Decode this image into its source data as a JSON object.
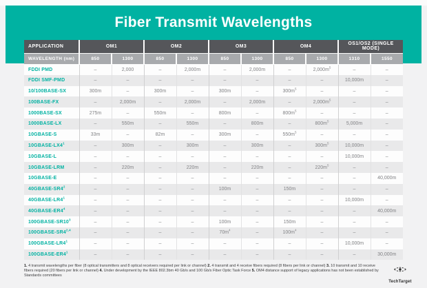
{
  "title": "Fiber Transmit Wavelengths",
  "colors": {
    "teal": "#00b2a2",
    "header_dark": "#55565a",
    "header_mid": "#a8aaad",
    "row_alt": "#e9e9ea",
    "value_text": "#808184"
  },
  "chart_data": {
    "type": "table",
    "title": "Fiber Transmit Wavelengths",
    "app_header": "APPLICATION",
    "wavelength_header": "WAVELENGTH (nm)",
    "groups": [
      {
        "label": "OM1",
        "wavelengths": [
          "850",
          "1300"
        ]
      },
      {
        "label": "OM2",
        "wavelengths": [
          "850",
          "1300"
        ]
      },
      {
        "label": "OM3",
        "wavelengths": [
          "850",
          "1300"
        ]
      },
      {
        "label": "OM4",
        "wavelengths": [
          "850",
          "1300"
        ]
      },
      {
        "label": "OS1/OS2 (SINGLE MODE)",
        "wavelengths": [
          "1310",
          "1550"
        ]
      }
    ],
    "rows": [
      {
        "app": "FDDI PMD",
        "values": [
          "–",
          "2,000",
          "–",
          "2,000m",
          "–",
          "2,000m",
          "–",
          "2,000m^5",
          "–",
          "–"
        ]
      },
      {
        "app": "FDDI SMF-PMD",
        "values": [
          "–",
          "–",
          "–",
          "–",
          "–",
          "–",
          "–",
          "–",
          "10,000m",
          "–"
        ]
      },
      {
        "app": "10/100BASE-SX",
        "values": [
          "300m",
          "–",
          "300m",
          "–",
          "300m",
          "–",
          "300m^5",
          "–",
          "–",
          "–"
        ]
      },
      {
        "app": "100BASE-FX",
        "values": [
          "–",
          "2,000m",
          "–",
          "2,000m",
          "–",
          "2,000m",
          "–",
          "2,000m^5",
          "–",
          "–"
        ]
      },
      {
        "app": "1000BASE-SX",
        "values": [
          "275m",
          "–",
          "550m",
          "–",
          "800m",
          "–",
          "800m^5",
          "–",
          "–",
          "–"
        ]
      },
      {
        "app": "1000BASE-LX",
        "values": [
          "–",
          "550m",
          "–",
          "550m",
          "–",
          "800m",
          "–",
          "800m^5",
          "5,000m",
          "–"
        ]
      },
      {
        "app": "10GBASE-S",
        "values": [
          "33m",
          "–",
          "82m",
          "–",
          "300m",
          "–",
          "550m^5",
          "–",
          "–",
          "–"
        ]
      },
      {
        "app": "10GBASE-LX4^1",
        "values": [
          "–",
          "300m",
          "–",
          "300m",
          "–",
          "300m",
          "–",
          "300m^5",
          "10,000m",
          "–"
        ]
      },
      {
        "app": "10GBASE-L",
        "values": [
          "–",
          "–",
          "–",
          "–",
          "–",
          "–",
          "–",
          "–",
          "10,000m",
          "–"
        ]
      },
      {
        "app": "10GBASE-LRM",
        "values": [
          "–",
          "220m",
          "–",
          "220m",
          "–",
          "220m",
          "–",
          "220m^5",
          "–",
          "–"
        ]
      },
      {
        "app": "10GBASE-E",
        "values": [
          "–",
          "–",
          "–",
          "–",
          "–",
          "–",
          "–",
          "–",
          "–",
          "40,000m"
        ]
      },
      {
        "app": "40GBASE-SR4^2",
        "values": [
          "–",
          "–",
          "–",
          "–",
          "100m",
          "–",
          "150m",
          "–",
          "–",
          "–"
        ]
      },
      {
        "app": "40GBASE-LR4^1",
        "values": [
          "–",
          "–",
          "–",
          "–",
          "–",
          "–",
          "–",
          "–",
          "10,000m",
          "–"
        ]
      },
      {
        "app": "40GBASE-ER4^4",
        "values": [
          "–",
          "–",
          "–",
          "–",
          "–",
          "–",
          "–",
          "–",
          "–",
          "40,000m"
        ]
      },
      {
        "app": "100GBASE-SR10^3",
        "values": [
          "–",
          "–",
          "–",
          "–",
          "100m",
          "–",
          "150m",
          "–",
          "–",
          "–"
        ]
      },
      {
        "app": "100GBASE-SR4^2,4",
        "values": [
          "–",
          "–",
          "–",
          "–",
          "70m^4",
          "–",
          "100m^4",
          "–",
          "–",
          "–"
        ]
      },
      {
        "app": "100GBASE-LR4^1",
        "values": [
          "–",
          "–",
          "–",
          "–",
          "–",
          "–",
          "–",
          "–",
          "10,000m",
          "–"
        ]
      },
      {
        "app": "100GBASE-ER4^1",
        "values": [
          "–",
          "–",
          "–",
          "–",
          "–",
          "–",
          "–",
          "–",
          "–",
          "30,000m"
        ]
      }
    ]
  },
  "footnotes": [
    {
      "num": "1.",
      "text": "4 transmit wavelengths per fiber (8 optical transmitters and 8 optical receivers required per link or channel)"
    },
    {
      "num": "2.",
      "text": "4 transmit and 4 receive fibers required (8 fibers per link or channel)"
    },
    {
      "num": "3.",
      "text": "10 transmit and 10 receive fibers required (20 fibers per link or channel)"
    },
    {
      "num": "4.",
      "text": "Under development by the IEEE 802.3bm 40 Gb/s and 100 Gb/s Fiber Optic Task Force"
    },
    {
      "num": "5.",
      "text": "OM4 distance support of legacy applications has not been established by Standards committees"
    }
  ],
  "logo_text": "TechTarget"
}
